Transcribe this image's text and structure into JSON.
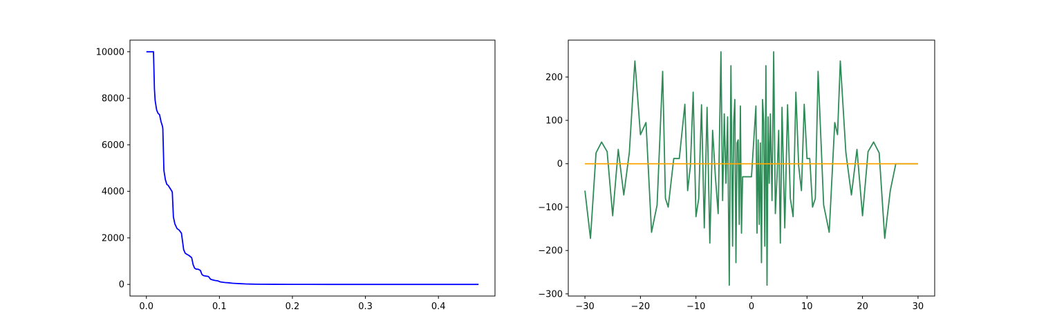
{
  "chart_data": [
    {
      "type": "line",
      "title": "",
      "xlabel": "",
      "ylabel": "",
      "xlim": [
        -0.0225,
        0.4775
      ],
      "ylim": [
        -500,
        10500
      ],
      "xticks": [
        {
          "value": 0.0,
          "label": "0.0"
        },
        {
          "value": 0.1,
          "label": "0.1"
        },
        {
          "value": 0.2,
          "label": "0.2"
        },
        {
          "value": 0.3,
          "label": "0.3"
        },
        {
          "value": 0.4,
          "label": "0.4"
        }
      ],
      "yticks": [
        {
          "value": 0,
          "label": "0"
        },
        {
          "value": 2000,
          "label": "2000"
        },
        {
          "value": 4000,
          "label": "4000"
        },
        {
          "value": 6000,
          "label": "6000"
        },
        {
          "value": 8000,
          "label": "8000"
        },
        {
          "value": 10000,
          "label": "10000"
        }
      ],
      "grid": false,
      "series": [
        {
          "color": "#0000ff",
          "x": [
            0.0,
            0.0097,
            0.0101,
            0.011,
            0.012,
            0.014,
            0.016,
            0.018,
            0.02,
            0.022,
            0.0225,
            0.024,
            0.026,
            0.028,
            0.03,
            0.033,
            0.035,
            0.0355,
            0.037,
            0.039,
            0.042,
            0.045,
            0.048,
            0.051,
            0.053,
            0.055,
            0.058,
            0.062,
            0.064,
            0.066,
            0.068,
            0.071,
            0.074,
            0.076,
            0.078,
            0.081,
            0.085,
            0.088,
            0.091,
            0.094,
            0.098,
            0.101,
            0.105,
            0.108,
            0.112,
            0.118,
            0.124,
            0.13,
            0.136,
            0.142,
            0.15,
            0.16,
            0.175,
            0.195,
            0.22,
            0.25,
            0.3,
            0.35,
            0.4,
            0.455
          ],
          "y": [
            10000,
            10000,
            9500,
            8400,
            7900,
            7500,
            7350,
            7300,
            7000,
            6800,
            6700,
            4900,
            4500,
            4300,
            4250,
            4100,
            4000,
            3950,
            2900,
            2600,
            2400,
            2330,
            2200,
            1500,
            1350,
            1300,
            1250,
            1150,
            850,
            700,
            660,
            650,
            600,
            430,
            380,
            360,
            340,
            220,
            190,
            170,
            150,
            110,
            90,
            80,
            70,
            50,
            40,
            30,
            20,
            15,
            10,
            5,
            3,
            2,
            1,
            0,
            0,
            0,
            0,
            0
          ]
        }
      ]
    },
    {
      "type": "line",
      "title": "",
      "xlabel": "",
      "ylabel": "",
      "xlim": [
        -33,
        33
      ],
      "ylim": [
        -305,
        285
      ],
      "xticks": [
        {
          "value": -30,
          "label": "−30"
        },
        {
          "value": -20,
          "label": "−20"
        },
        {
          "value": -10,
          "label": "−10"
        },
        {
          "value": 0,
          "label": "0"
        },
        {
          "value": 10,
          "label": "10"
        },
        {
          "value": 20,
          "label": "20"
        },
        {
          "value": 30,
          "label": "30"
        }
      ],
      "yticks": [
        {
          "value": -300,
          "label": "−300"
        },
        {
          "value": -200,
          "label": "−200"
        },
        {
          "value": -100,
          "label": "−100"
        },
        {
          "value": 0,
          "label": "0"
        },
        {
          "value": 100,
          "label": "100"
        },
        {
          "value": 200,
          "label": "200"
        }
      ],
      "grid": false,
      "series": [
        {
          "color": "#2e8b57",
          "x": [
            -30,
            -29.0,
            -28.0,
            -27.0,
            -26.0,
            -25.0,
            -24.0,
            -23.0,
            -22.0,
            -21.0,
            -20.0,
            -19.0,
            -18.0,
            -17.0,
            -16.0,
            -15.5,
            -15.0,
            -14.0,
            -13.0,
            -12.0,
            -11.5,
            -11.0,
            -10.5,
            -10.0,
            -9.5,
            -9.0,
            -8.5,
            -8.0,
            -7.5,
            -7.0,
            -6.5,
            -6.0,
            -5.5,
            -5.2,
            -4.9,
            -4.6,
            -4.3,
            -4.0,
            -3.7,
            -3.4,
            -3.2,
            -3.0,
            -2.8,
            -2.6,
            -2.4,
            -2.2,
            -2.0,
            -1.8,
            -1.6,
            -1.4,
            -1.2,
            -1.0,
            -0.8,
            0.0,
            0.8,
            1.0,
            1.2,
            1.4,
            1.6,
            1.8,
            2.0,
            2.2,
            2.4,
            2.6,
            2.8,
            3.0,
            3.2,
            3.4,
            3.7,
            4.0,
            4.3,
            4.6,
            4.9,
            5.2,
            5.5,
            6.0,
            6.5,
            7.0,
            7.5,
            8.0,
            8.5,
            9.0,
            9.5,
            10.0,
            10.5,
            11.0,
            11.5,
            12.0,
            13.0,
            14.0,
            15.0,
            15.5,
            16.0,
            17.0,
            18.0,
            19.0,
            20.0,
            21.0,
            22.0,
            23.0,
            24.0,
            25.0,
            26.0,
            27.0,
            28.0,
            29.0,
            30.0
          ],
          "y": [
            -62,
            -172,
            25,
            50,
            28,
            -120,
            33,
            -72,
            26,
            237,
            67,
            95,
            -158,
            -95,
            213,
            -80,
            -100,
            12,
            12,
            137,
            -62,
            -5,
            165,
            -122,
            -80,
            136,
            -148,
            130,
            -183,
            77,
            -30,
            -115,
            258,
            -85,
            115,
            -45,
            108,
            -280,
            226,
            -190,
            97,
            148,
            -228,
            48,
            55,
            -140,
            133,
            -160,
            -30,
            -30,
            -30,
            -30,
            -30,
            -30,
            133,
            -160,
            55,
            -140,
            48,
            -228,
            148,
            97,
            -190,
            226,
            -280,
            108,
            -45,
            115,
            -85,
            258,
            -115,
            -30,
            77,
            -183,
            130,
            -148,
            136,
            -80,
            -122,
            165,
            -5,
            -62,
            137,
            12,
            12,
            -100,
            -80,
            213,
            -95,
            -158,
            95,
            67,
            237,
            26,
            -72,
            33,
            -120,
            28,
            50,
            25,
            -172,
            -62,
            0,
            0,
            0,
            0,
            0
          ]
        },
        {
          "color": "#ffa500",
          "x": [
            -30,
            30
          ],
          "y": [
            0,
            0
          ]
        }
      ]
    }
  ]
}
